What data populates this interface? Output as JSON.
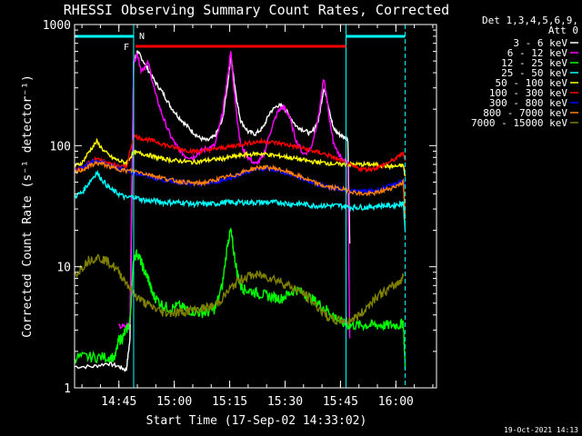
{
  "chart_data": {
    "type": "line",
    "title": "RHESSI Observing Summary Count Rates, Corrected",
    "xlabel": "Start Time (17-Sep-02 14:33:02)",
    "ylabel": "Corrected Count Rate (s⁻¹ detector⁻¹)",
    "x_unit": "minutes after 14:33:02",
    "xlim": [
      0,
      98
    ],
    "ylim": [
      1,
      1000
    ],
    "yscale": "log",
    "x_ticks": [
      {
        "x": 12.0,
        "label": "14:45"
      },
      {
        "x": 27.0,
        "label": "15:00"
      },
      {
        "x": 42.0,
        "label": "15:15"
      },
      {
        "x": 57.0,
        "label": "15:30"
      },
      {
        "x": 72.0,
        "label": "15:45"
      },
      {
        "x": 87.0,
        "label": "16:00"
      }
    ],
    "y_ticks": [
      {
        "y": 1,
        "label": "1"
      },
      {
        "y": 10,
        "label": "10"
      },
      {
        "y": 100,
        "label": "100"
      },
      {
        "y": 1000,
        "label": "1000"
      }
    ],
    "legend_title": [
      "Det 1,3,4,5,6,9,",
      "Att 0"
    ],
    "legend_position": "right",
    "series": [
      {
        "name": "3 - 6 keV",
        "color": "#ffffff",
        "x": [
          0,
          5,
          9,
          12,
          14,
          15,
          16,
          17,
          18,
          20,
          22,
          24,
          26,
          28,
          30,
          32,
          34,
          36,
          38,
          40,
          41.5,
          42.3,
          43,
          44,
          45,
          47,
          49,
          51,
          53,
          55,
          56.5,
          58,
          60,
          62,
          64,
          66,
          67.5,
          69,
          70,
          71.5,
          73,
          74,
          74.5
        ],
        "y": [
          1.5,
          1.5,
          1.6,
          1.5,
          1.4,
          2.5,
          480,
          600,
          540,
          420,
          330,
          270,
          210,
          175,
          150,
          130,
          115,
          110,
          120,
          160,
          330,
          560,
          380,
          230,
          160,
          130,
          125,
          140,
          190,
          215,
          210,
          180,
          145,
          135,
          125,
          160,
          300,
          200,
          140,
          125,
          118,
          112,
          15
        ]
      },
      {
        "name": "6 - 12 keV",
        "color": "#ff00ff",
        "x": [
          12,
          14,
          15,
          16,
          17,
          18,
          20,
          22,
          24,
          26,
          28,
          30,
          32,
          34,
          36,
          38,
          40,
          41.5,
          42.3,
          43,
          44,
          45,
          47,
          49,
          51,
          53,
          55,
          56.5,
          58,
          60,
          62,
          64,
          66,
          67.5,
          69,
          70,
          71.5,
          73,
          74,
          74.5
        ],
        "y": [
          3.2,
          3.2,
          3.5,
          480,
          580,
          420,
          480,
          260,
          170,
          120,
          95,
          82,
          80,
          90,
          95,
          100,
          180,
          380,
          600,
          330,
          170,
          100,
          80,
          70,
          80,
          130,
          190,
          210,
          180,
          110,
          85,
          95,
          170,
          360,
          170,
          110,
          85,
          75,
          70,
          2.5
        ]
      },
      {
        "name": "12 - 25 keV",
        "color": "#00ff00",
        "x": [
          0,
          3,
          6,
          9,
          11,
          12,
          13,
          14,
          15,
          16,
          17,
          18,
          19,
          20,
          21,
          22,
          24,
          26,
          28,
          30,
          32,
          34,
          36,
          38,
          40,
          41.5,
          42.3,
          43,
          44,
          45,
          46,
          48,
          50,
          52,
          54,
          56,
          58,
          60,
          62,
          64,
          66,
          68,
          70,
          72,
          74,
          76,
          78,
          80,
          82,
          84,
          86,
          88,
          89,
          89.5
        ],
        "y": [
          1.8,
          1.8,
          1.8,
          1.8,
          1.8,
          2.5,
          2.6,
          3.0,
          3.5,
          12,
          13,
          11,
          9,
          8.0,
          6.0,
          5.5,
          4.8,
          4.5,
          4.8,
          4.5,
          4.3,
          4.2,
          4.2,
          4.5,
          7,
          16,
          20,
          14,
          9,
          7,
          6.5,
          6.3,
          6.0,
          5.8,
          5.6,
          5.5,
          6.0,
          6.5,
          6.0,
          5.5,
          5.0,
          4.5,
          4.0,
          3.5,
          3.3,
          3.3,
          3.3,
          3.3,
          3.3,
          3.3,
          3.3,
          3.3,
          3.5,
          1.5
        ]
      },
      {
        "name": "25 - 50 keV",
        "color": "#00ffff",
        "x": [
          0,
          2,
          4,
          6,
          8,
          10,
          12,
          14,
          16,
          18,
          20,
          22,
          24,
          26,
          28,
          30,
          32,
          34,
          36,
          38,
          40,
          42,
          44,
          46,
          48,
          50,
          52,
          54,
          56,
          58,
          60,
          62,
          64,
          66,
          68,
          70,
          72,
          74,
          76,
          78,
          80,
          82,
          84,
          86,
          88,
          89,
          89.5
        ],
        "y": [
          38,
          41,
          50,
          60,
          50,
          43,
          40,
          37,
          38,
          36,
          35,
          35,
          34,
          34,
          34,
          34,
          33,
          33,
          33,
          33,
          34,
          34,
          34,
          34,
          34,
          34,
          34,
          34,
          34,
          33,
          33,
          33,
          32,
          32,
          32,
          32,
          32,
          31,
          31,
          31,
          31,
          32,
          32,
          32,
          33,
          34,
          20
        ]
      },
      {
        "name": "50 - 100 keV",
        "color": "#ffff00",
        "x": [
          0,
          2,
          4,
          6,
          8,
          10,
          12,
          14,
          16,
          18,
          20,
          22,
          24,
          26,
          28,
          30,
          32,
          34,
          36,
          38,
          40,
          42,
          44,
          46,
          48,
          50,
          52,
          54,
          56,
          58,
          60,
          62,
          64,
          66,
          68,
          70,
          72,
          74,
          76,
          78,
          80,
          82,
          84,
          86,
          88,
          89,
          89.5
        ],
        "y": [
          68,
          72,
          90,
          108,
          90,
          80,
          75,
          72,
          88,
          86,
          84,
          80,
          78,
          76,
          75,
          74,
          73,
          74,
          76,
          77,
          78,
          80,
          82,
          84,
          85,
          86,
          85,
          83,
          82,
          80,
          78,
          76,
          74,
          73,
          72,
          71,
          70,
          70,
          70,
          70,
          70,
          69,
          68,
          67,
          68,
          69,
          55
        ]
      },
      {
        "name": "100 - 300 keV",
        "color": "#ff0000",
        "x": [
          0,
          2,
          4,
          6,
          8,
          10,
          12,
          14,
          16,
          18,
          20,
          22,
          24,
          26,
          28,
          30,
          32,
          34,
          36,
          38,
          40,
          42,
          44,
          46,
          48,
          50,
          52,
          54,
          56,
          58,
          60,
          62,
          64,
          66,
          68,
          70,
          72,
          74,
          76,
          78,
          80,
          82,
          84,
          86,
          88,
          89,
          89.5
        ],
        "y": [
          64,
          66,
          72,
          78,
          74,
          70,
          68,
          66,
          120,
          115,
          112,
          108,
          103,
          98,
          95,
          92,
          90,
          90,
          92,
          94,
          96,
          98,
          101,
          104,
          106,
          108,
          108,
          106,
          104,
          101,
          98,
          95,
          91,
          88,
          85,
          80,
          75,
          70,
          66,
          64,
          64,
          66,
          70,
          75,
          82,
          88,
          75
        ]
      },
      {
        "name": "300 - 800 keV",
        "color": "#0000ff",
        "x": [
          0,
          2,
          4,
          6,
          8,
          10,
          12,
          14,
          16,
          18,
          20,
          22,
          24,
          26,
          28,
          30,
          32,
          34,
          36,
          38,
          40,
          42,
          44,
          46,
          48,
          50,
          52,
          54,
          56,
          58,
          60,
          62,
          64,
          66,
          68,
          70,
          72,
          74,
          76,
          78,
          80,
          82,
          84,
          86,
          88,
          89,
          89.5
        ],
        "y": [
          62,
          66,
          72,
          75,
          72,
          68,
          65,
          62,
          60,
          58,
          56,
          54,
          52,
          51,
          50,
          49,
          48,
          48,
          49,
          50,
          52,
          54,
          57,
          60,
          62,
          64,
          64,
          63,
          61,
          59,
          56,
          53,
          50,
          48,
          46,
          45,
          44,
          43,
          42,
          42,
          42,
          43,
          45,
          47,
          50,
          52,
          45
        ]
      },
      {
        "name": "800 - 7000 keV",
        "color": "#ff8000",
        "x": [
          0,
          2,
          4,
          6,
          8,
          10,
          12,
          14,
          16,
          18,
          20,
          22,
          24,
          26,
          28,
          30,
          32,
          34,
          36,
          38,
          40,
          42,
          44,
          46,
          48,
          50,
          52,
          54,
          56,
          58,
          60,
          62,
          64,
          66,
          68,
          70,
          72,
          74,
          76,
          78,
          80,
          82,
          84,
          86,
          88,
          89,
          89.5
        ],
        "y": [
          60,
          63,
          68,
          72,
          70,
          66,
          64,
          62,
          62,
          60,
          58,
          56,
          54,
          52,
          51,
          50,
          49,
          49,
          50,
          52,
          54,
          56,
          58,
          61,
          64,
          66,
          66,
          65,
          63,
          60,
          57,
          54,
          51,
          48,
          46,
          45,
          44,
          43,
          41,
          40,
          40,
          41,
          43,
          45,
          48,
          50,
          25
        ]
      },
      {
        "name": "7000 - 15000 keV",
        "color": "#808000",
        "x": [
          0,
          2,
          4,
          6,
          8,
          10,
          12,
          14,
          16,
          18,
          20,
          22,
          24,
          26,
          28,
          30,
          32,
          34,
          36,
          38,
          40,
          42,
          44,
          46,
          48,
          50,
          52,
          54,
          56,
          58,
          60,
          62,
          64,
          66,
          68,
          70,
          72,
          74,
          76,
          78,
          80,
          82,
          84,
          86,
          88,
          89
        ],
        "y": [
          8.5,
          10,
          11.5,
          12,
          11.5,
          10.5,
          9.0,
          7.5,
          6.0,
          5.3,
          4.8,
          4.5,
          4.2,
          4.2,
          4.2,
          4.3,
          4.4,
          4.5,
          4.6,
          4.8,
          5.5,
          6.5,
          7.5,
          8.2,
          8.5,
          8.5,
          8.3,
          8.0,
          7.5,
          7.0,
          6.5,
          6.0,
          5.3,
          4.6,
          4.0,
          3.6,
          3.6,
          3.6,
          3.8,
          4.2,
          5.0,
          5.8,
          6.2,
          6.8,
          7.5,
          8.5
        ]
      }
    ],
    "annotations": [
      {
        "label": "F",
        "color": "#ff0000",
        "x_start": 16.5,
        "x_end": 73.5,
        "y": 660
      },
      {
        "label": "N",
        "color": "#00ffff",
        "x": 16.5
      }
    ],
    "vertical_markers": [
      {
        "x": 16.0,
        "color": "#00ffff",
        "style": "solid"
      },
      {
        "x": 73.5,
        "color": "#00ffff",
        "style": "solid"
      },
      {
        "x": 89.5,
        "color": "#00ffff",
        "style": "dashed"
      }
    ],
    "top_bars": [
      {
        "x_start": 0,
        "x_end": 16.0,
        "color": "#00ffff"
      },
      {
        "x_start": 73.5,
        "x_end": 89.5,
        "color": "#00ffff"
      }
    ]
  },
  "footer": {
    "timestamp": "19-Oct-2021 14:13"
  }
}
